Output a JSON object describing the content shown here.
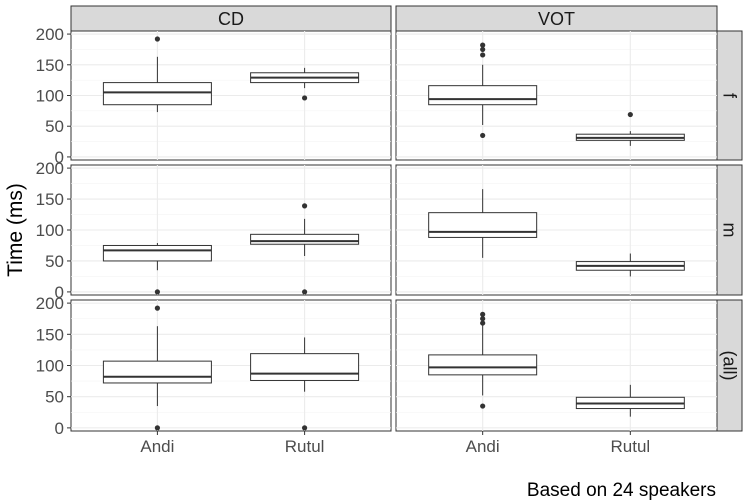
{
  "chart_data": {
    "type": "boxplot",
    "facet_columns": [
      "CD",
      "VOT"
    ],
    "facet_rows": [
      "f",
      "m",
      "(all)"
    ],
    "categories": [
      "Andi",
      "Rutul"
    ],
    "ylabel": "Time (ms)",
    "xlabel": "",
    "ylim": [
      -5,
      205
    ],
    "yticks": [
      0,
      50,
      100,
      150,
      200
    ],
    "caption": "Based on 24 speakers",
    "panels": [
      {
        "col": "CD",
        "row": "f",
        "boxes": [
          {
            "category": "Andi",
            "q1": 85,
            "median": 105,
            "q3": 121,
            "whisker_low": 73,
            "whisker_high": 163,
            "outliers": [
              192
            ]
          },
          {
            "category": "Rutul",
            "q1": 121,
            "median": 129,
            "q3": 137,
            "whisker_low": 112,
            "whisker_high": 145,
            "outliers": [
              96
            ]
          }
        ]
      },
      {
        "col": "VOT",
        "row": "f",
        "boxes": [
          {
            "category": "Andi",
            "q1": 85,
            "median": 94,
            "q3": 116,
            "whisker_low": 52,
            "whisker_high": 150,
            "outliers": [
              35,
              166,
              175,
              182
            ]
          },
          {
            "category": "Rutul",
            "q1": 27,
            "median": 31,
            "q3": 37,
            "whisker_low": 18,
            "whisker_high": 42,
            "outliers": [
              69
            ]
          }
        ]
      },
      {
        "col": "CD",
        "row": "m",
        "boxes": [
          {
            "category": "Andi",
            "q1": 50,
            "median": 67,
            "q3": 75,
            "whisker_low": 35,
            "whisker_high": 79,
            "outliers": [
              0
            ]
          },
          {
            "category": "Rutul",
            "q1": 77,
            "median": 82,
            "q3": 93,
            "whisker_low": 58,
            "whisker_high": 118,
            "outliers": [
              139,
              0
            ]
          }
        ]
      },
      {
        "col": "VOT",
        "row": "m",
        "boxes": [
          {
            "category": "Andi",
            "q1": 88,
            "median": 97,
            "q3": 128,
            "whisker_low": 55,
            "whisker_high": 166,
            "outliers": []
          },
          {
            "category": "Rutul",
            "q1": 35,
            "median": 42,
            "q3": 49,
            "whisker_low": 25,
            "whisker_high": 62,
            "outliers": []
          }
        ]
      },
      {
        "col": "CD",
        "row": "(all)",
        "boxes": [
          {
            "category": "Andi",
            "q1": 72,
            "median": 82,
            "q3": 107,
            "whisker_low": 35,
            "whisker_high": 163,
            "outliers": [
              0,
              192
            ]
          },
          {
            "category": "Rutul",
            "q1": 76,
            "median": 87,
            "q3": 119,
            "whisker_low": 58,
            "whisker_high": 145,
            "outliers": [
              0
            ]
          }
        ]
      },
      {
        "col": "VOT",
        "row": "(all)",
        "boxes": [
          {
            "category": "Andi",
            "q1": 85,
            "median": 97,
            "q3": 117,
            "whisker_low": 52,
            "whisker_high": 166,
            "outliers": [
              35,
              168,
              175,
              182
            ]
          },
          {
            "category": "Rutul",
            "q1": 31,
            "median": 39,
            "q3": 49,
            "whisker_low": 18,
            "whisker_high": 69,
            "outliers": []
          }
        ]
      }
    ]
  }
}
